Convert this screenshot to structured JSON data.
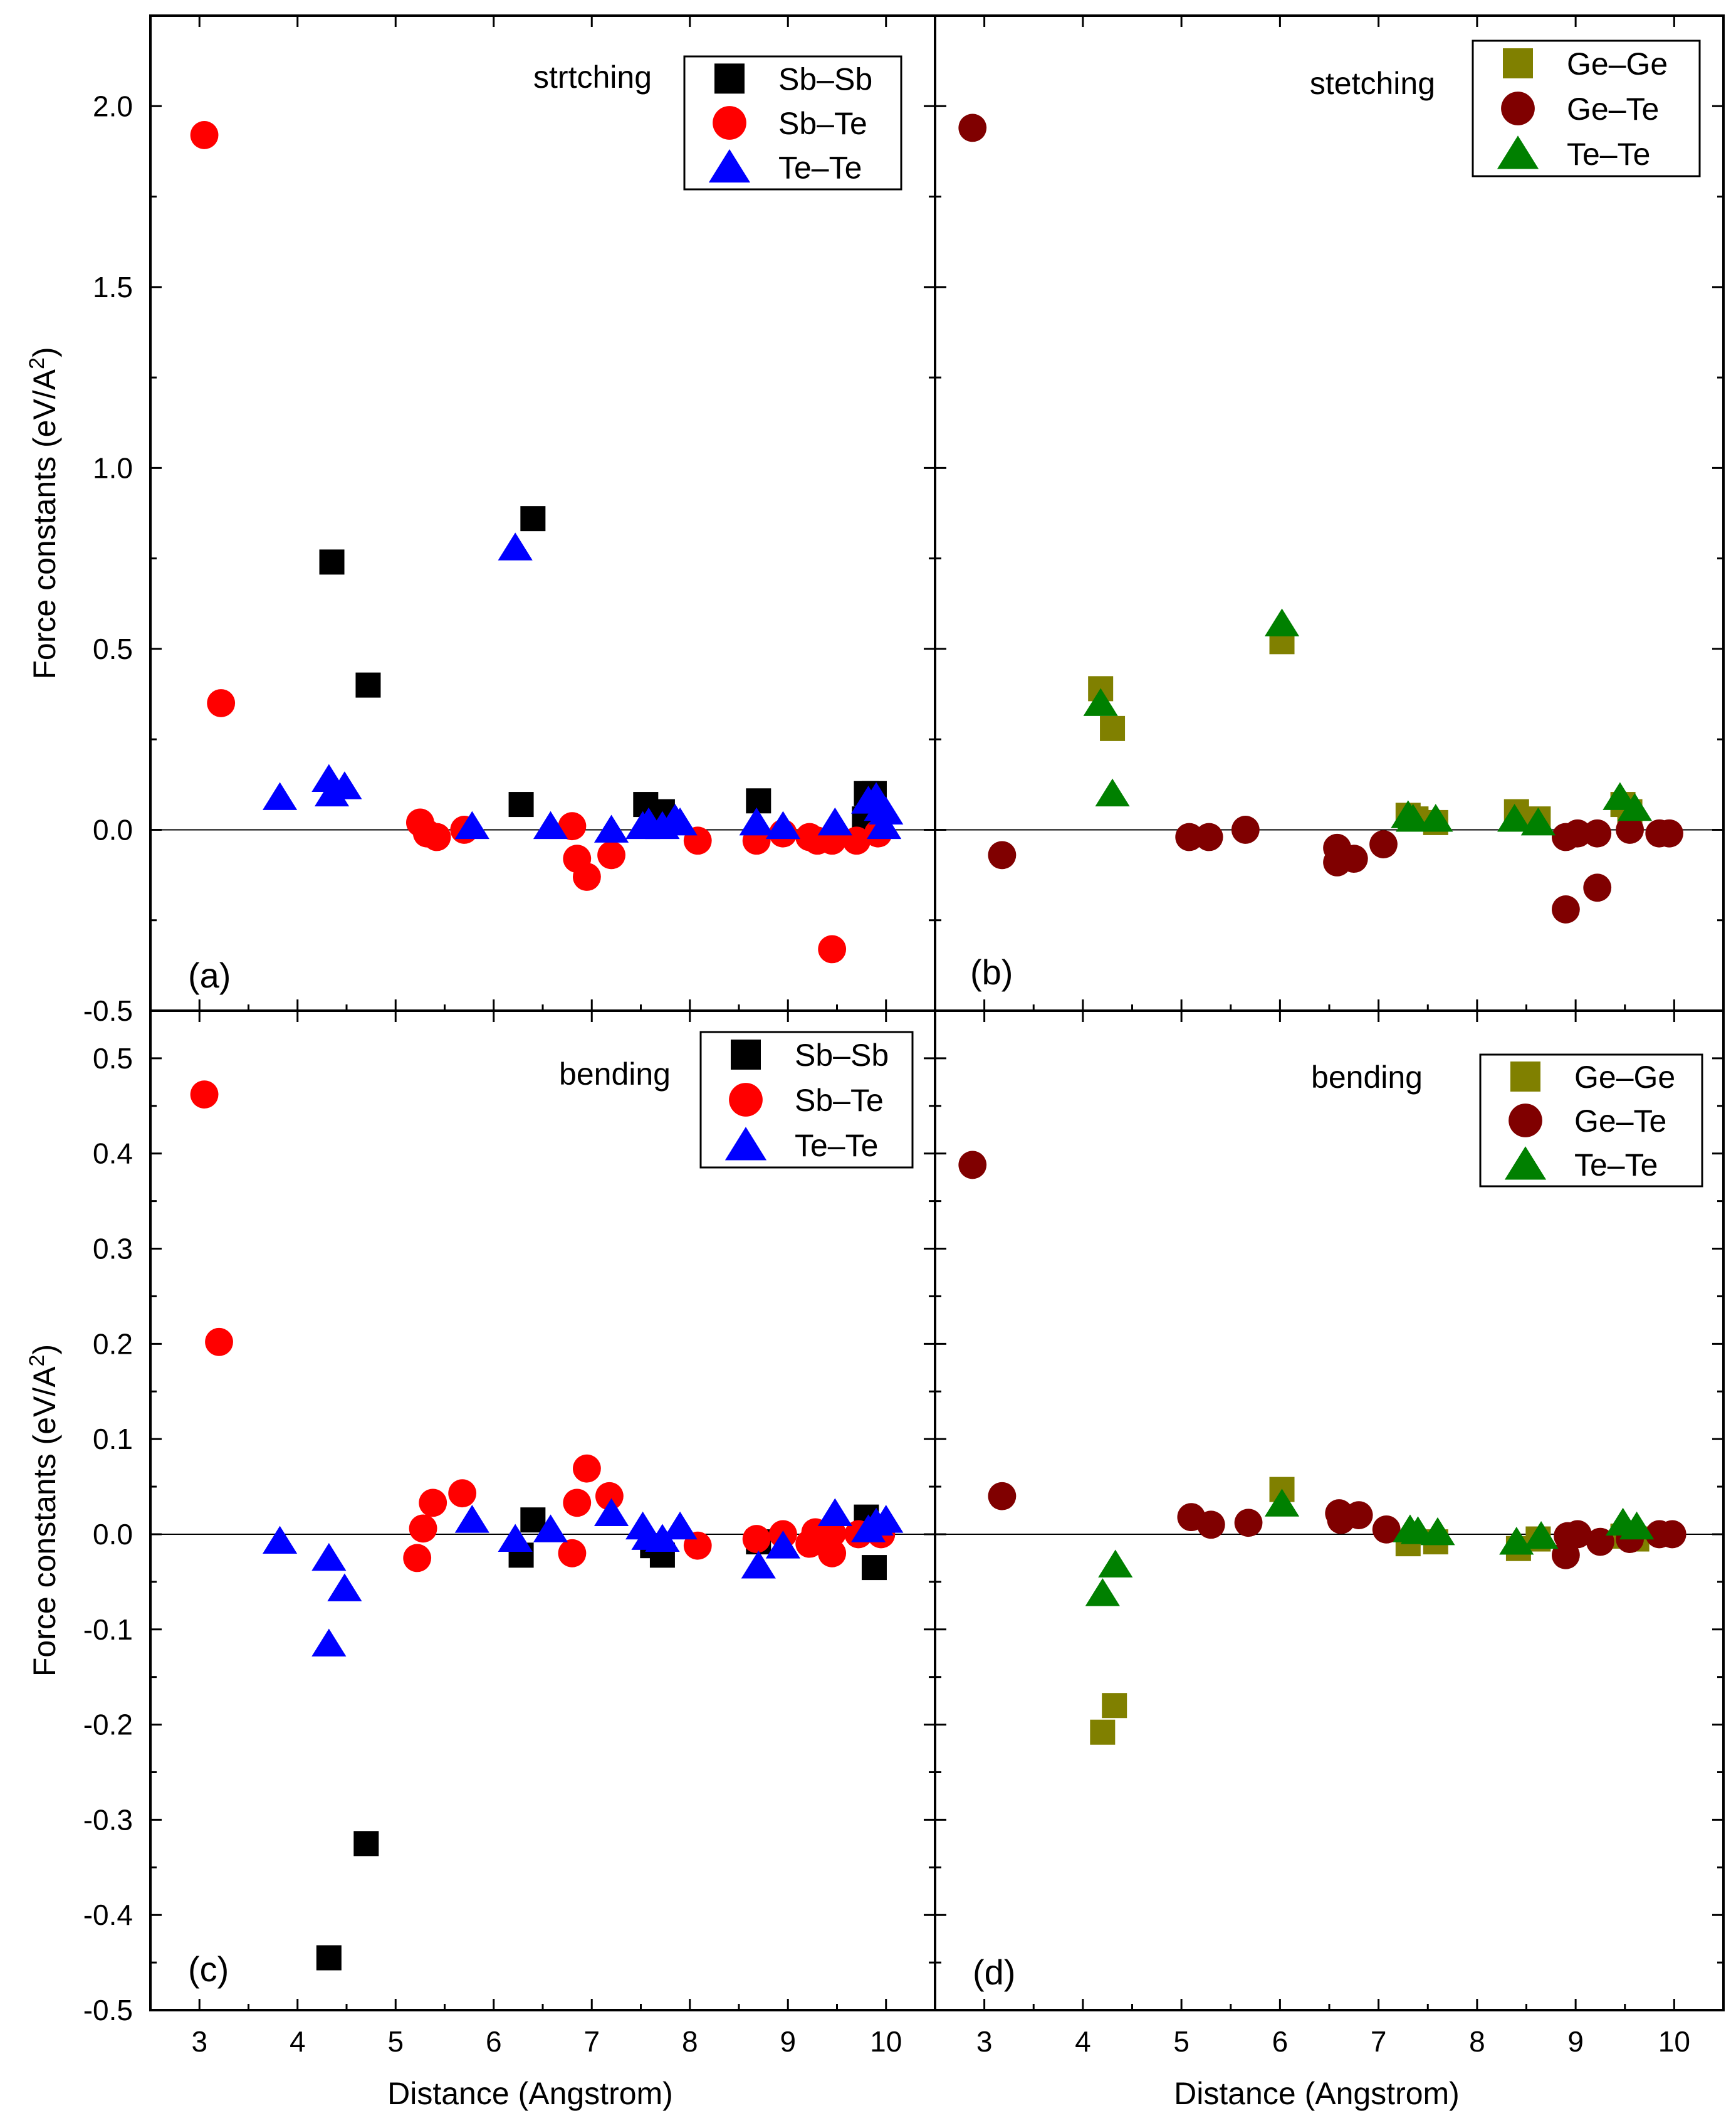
{
  "chart_data": [
    {
      "id": "a",
      "type": "scatter",
      "panel_label": "(a)",
      "annotation": "strtching",
      "ylabel": "Force constants (eV/A",
      "ylabel_sup": "2",
      "ylabel_tail": ")",
      "xlabel": "",
      "xlim": [
        2.5,
        10.5
      ],
      "ylim": [
        -0.5,
        2.25
      ],
      "xticks": [
        3,
        4,
        5,
        6,
        7,
        8,
        9,
        10
      ],
      "show_xtick_labels": false,
      "yticks": [
        -0.5,
        0.0,
        0.5,
        1.0,
        1.5,
        2.0
      ],
      "ytick_labels": [
        "-0.5",
        "0.0",
        "0.5",
        "1.0",
        "1.5",
        "2.0"
      ],
      "show_ytick_labels": true,
      "legend_position": "top-right",
      "series": [
        {
          "name": "Sb–Sb",
          "marker": "square",
          "color": "#000000",
          "points": [
            [
              4.35,
              0.74
            ],
            [
              4.72,
              0.4
            ],
            [
              6.4,
              0.86
            ],
            [
              6.28,
              0.07
            ],
            [
              7.55,
              0.07
            ],
            [
              7.72,
              0.05
            ],
            [
              8.7,
              0.08
            ],
            [
              9.8,
              0.1
            ],
            [
              9.88,
              0.1
            ],
            [
              9.78,
              0.03
            ]
          ]
        },
        {
          "name": "Sb–Te",
          "marker": "circle",
          "color": "#ff0000",
          "points": [
            [
              3.05,
              1.92
            ],
            [
              3.22,
              0.35
            ],
            [
              5.25,
              0.02
            ],
            [
              5.32,
              -0.01
            ],
            [
              5.42,
              -0.02
            ],
            [
              5.7,
              0.0
            ],
            [
              6.8,
              0.01
            ],
            [
              6.85,
              -0.08
            ],
            [
              6.95,
              -0.13
            ],
            [
              7.2,
              -0.07
            ],
            [
              8.08,
              -0.03
            ],
            [
              8.68,
              -0.03
            ],
            [
              8.95,
              -0.01
            ],
            [
              9.22,
              -0.02
            ],
            [
              9.3,
              -0.03
            ],
            [
              9.45,
              -0.03
            ],
            [
              9.45,
              -0.33
            ],
            [
              9.7,
              -0.03
            ],
            [
              9.92,
              -0.01
            ]
          ]
        },
        {
          "name": "Te–Te",
          "marker": "triangle",
          "color": "#0000ff",
          "points": [
            [
              3.82,
              0.09
            ],
            [
              4.32,
              0.14
            ],
            [
              4.35,
              0.1
            ],
            [
              4.48,
              0.12
            ],
            [
              5.78,
              0.01
            ],
            [
              6.22,
              0.78
            ],
            [
              6.58,
              0.01
            ],
            [
              7.2,
              0.0
            ],
            [
              7.52,
              0.01
            ],
            [
              7.58,
              0.02
            ],
            [
              7.72,
              0.01
            ],
            [
              7.85,
              0.03
            ],
            [
              7.9,
              0.02
            ],
            [
              8.68,
              0.02
            ],
            [
              8.95,
              0.01
            ],
            [
              9.48,
              0.02
            ],
            [
              9.82,
              0.08
            ],
            [
              9.9,
              0.09
            ],
            [
              9.95,
              0.06
            ],
            [
              10.0,
              0.05
            ],
            [
              9.98,
              0.01
            ]
          ]
        }
      ]
    },
    {
      "id": "b",
      "type": "scatter",
      "panel_label": "(b)",
      "annotation": "stetching",
      "xlabel": "",
      "xlim": [
        2.5,
        10.5
      ],
      "ylim": [
        -0.5,
        2.25
      ],
      "xticks": [
        3,
        4,
        5,
        6,
        7,
        8,
        9,
        10
      ],
      "show_xtick_labels": false,
      "yticks": [
        -0.5,
        0.0,
        0.5,
        1.0,
        1.5,
        2.0
      ],
      "show_ytick_labels": false,
      "legend_position": "top-right",
      "series": [
        {
          "name": "Ge–Ge",
          "marker": "square",
          "color": "#808000",
          "points": [
            [
              4.18,
              0.39
            ],
            [
              4.3,
              0.28
            ],
            [
              6.02,
              0.52
            ],
            [
              7.3,
              0.04
            ],
            [
              7.38,
              0.03
            ],
            [
              7.58,
              0.02
            ],
            [
              8.4,
              0.05
            ],
            [
              8.62,
              0.03
            ],
            [
              9.48,
              0.07
            ],
            [
              9.55,
              0.05
            ]
          ]
        },
        {
          "name": "Ge–Te",
          "marker": "circle",
          "color": "#800000",
          "points": [
            [
              2.88,
              1.94
            ],
            [
              3.18,
              -0.07
            ],
            [
              5.08,
              -0.02
            ],
            [
              5.28,
              -0.02
            ],
            [
              5.65,
              0.0
            ],
            [
              6.58,
              -0.05
            ],
            [
              6.58,
              -0.09
            ],
            [
              6.75,
              -0.08
            ],
            [
              7.05,
              -0.04
            ],
            [
              8.9,
              -0.02
            ],
            [
              9.02,
              -0.01
            ],
            [
              9.22,
              -0.01
            ],
            [
              8.9,
              -0.22
            ],
            [
              9.22,
              -0.16
            ],
            [
              9.55,
              0.0
            ],
            [
              9.85,
              -0.01
            ],
            [
              9.95,
              -0.01
            ]
          ]
        },
        {
          "name": "Te–Te",
          "marker": "triangle",
          "color": "#008000",
          "points": [
            [
              4.18,
              0.35
            ],
            [
              4.3,
              0.1
            ],
            [
              6.02,
              0.57
            ],
            [
              7.3,
              0.04
            ],
            [
              7.35,
              0.03
            ],
            [
              7.58,
              0.03
            ],
            [
              8.38,
              0.03
            ],
            [
              8.62,
              0.02
            ],
            [
              9.45,
              0.09
            ],
            [
              9.6,
              0.06
            ]
          ]
        }
      ]
    },
    {
      "id": "c",
      "type": "scatter",
      "panel_label": "(c)",
      "annotation": "bending",
      "ylabel": "Force constants (eV/A",
      "ylabel_sup": "2",
      "ylabel_tail": ")",
      "xlabel": "Distance (Angstrom)",
      "xlim": [
        2.5,
        10.5
      ],
      "ylim": [
        -0.5,
        0.55
      ],
      "xticks": [
        3,
        4,
        5,
        6,
        7,
        8,
        9,
        10
      ],
      "xtick_labels": [
        "3",
        "4",
        "5",
        "6",
        "7",
        "8",
        "9",
        "10"
      ],
      "show_xtick_labels": true,
      "yticks": [
        -0.5,
        -0.4,
        -0.3,
        -0.2,
        -0.1,
        0.0,
        0.1,
        0.2,
        0.3,
        0.4,
        0.5
      ],
      "ytick_labels": [
        "-0.5",
        "-0.4",
        "-0.3",
        "-0.2",
        "-0.1",
        "0.0",
        "0.1",
        "0.2",
        "0.3",
        "0.4",
        "0.5"
      ],
      "show_ytick_labels": true,
      "legend_position": "top-right",
      "series": [
        {
          "name": "Sb–Sb",
          "marker": "square",
          "color": "#000000",
          "points": [
            [
              4.32,
              -0.445
            ],
            [
              4.7,
              -0.325
            ],
            [
              6.28,
              -0.022
            ],
            [
              6.4,
              0.015
            ],
            [
              7.62,
              -0.012
            ],
            [
              7.72,
              -0.022
            ],
            [
              8.7,
              -0.008
            ],
            [
              9.8,
              0.018
            ],
            [
              9.88,
              -0.035
            ]
          ]
        },
        {
          "name": "Sb–Te",
          "marker": "circle",
          "color": "#ff0000",
          "points": [
            [
              3.05,
              0.462
            ],
            [
              3.2,
              0.202
            ],
            [
              5.22,
              -0.025
            ],
            [
              5.28,
              0.006
            ],
            [
              5.38,
              0.033
            ],
            [
              5.68,
              0.043
            ],
            [
              6.8,
              -0.02
            ],
            [
              6.85,
              0.033
            ],
            [
              6.95,
              0.069
            ],
            [
              7.18,
              0.04
            ],
            [
              8.08,
              -0.012
            ],
            [
              8.68,
              -0.005
            ],
            [
              8.95,
              0.0
            ],
            [
              9.22,
              -0.01
            ],
            [
              9.28,
              0.002
            ],
            [
              9.45,
              -0.02
            ],
            [
              9.45,
              0.001
            ],
            [
              9.72,
              0.0
            ],
            [
              9.95,
              0.0
            ]
          ]
        },
        {
          "name": "Te–Te",
          "marker": "triangle",
          "color": "#0000ff",
          "points": [
            [
              3.82,
              -0.007
            ],
            [
              4.32,
              -0.025
            ],
            [
              4.32,
              -0.115
            ],
            [
              4.48,
              -0.057
            ],
            [
              5.78,
              0.015
            ],
            [
              6.22,
              -0.005
            ],
            [
              6.58,
              0.005
            ],
            [
              7.2,
              0.022
            ],
            [
              7.52,
              0.008
            ],
            [
              7.58,
              -0.003
            ],
            [
              7.72,
              -0.005
            ],
            [
              7.9,
              0.008
            ],
            [
              8.7,
              -0.033
            ],
            [
              8.95,
              -0.012
            ],
            [
              9.48,
              0.022
            ],
            [
              9.82,
              0.005
            ],
            [
              9.9,
              0.012
            ],
            [
              10.0,
              0.015
            ]
          ]
        }
      ]
    },
    {
      "id": "d",
      "type": "scatter",
      "panel_label": "(d)",
      "annotation": "bending",
      "xlabel": "Distance (Angstrom)",
      "xlim": [
        2.5,
        10.5
      ],
      "ylim": [
        -0.5,
        0.55
      ],
      "xticks": [
        3,
        4,
        5,
        6,
        7,
        8,
        9,
        10
      ],
      "xtick_labels": [
        "3",
        "4",
        "5",
        "6",
        "7",
        "8",
        "9",
        "10"
      ],
      "show_xtick_labels": true,
      "yticks": [
        -0.5,
        -0.4,
        -0.3,
        -0.2,
        -0.1,
        0.0,
        0.1,
        0.2,
        0.3,
        0.4,
        0.5
      ],
      "show_ytick_labels": false,
      "legend_position": "top-right",
      "series": [
        {
          "name": "Ge–Ge",
          "marker": "square",
          "color": "#808000",
          "points": [
            [
              4.2,
              -0.208
            ],
            [
              4.32,
              -0.18
            ],
            [
              6.02,
              0.047
            ],
            [
              7.3,
              -0.01
            ],
            [
              7.58,
              -0.008
            ],
            [
              8.42,
              -0.015
            ],
            [
              8.62,
              -0.005
            ],
            [
              9.48,
              -0.002
            ],
            [
              9.62,
              -0.005
            ]
          ]
        },
        {
          "name": "Ge–Te",
          "marker": "circle",
          "color": "#800000",
          "points": [
            [
              2.88,
              0.388
            ],
            [
              3.18,
              0.04
            ],
            [
              5.1,
              0.018
            ],
            [
              5.3,
              0.01
            ],
            [
              5.68,
              0.012
            ],
            [
              6.6,
              0.022
            ],
            [
              6.62,
              0.015
            ],
            [
              6.8,
              0.02
            ],
            [
              7.08,
              0.005
            ],
            [
              8.9,
              -0.022
            ],
            [
              8.92,
              -0.002
            ],
            [
              9.02,
              0.0
            ],
            [
              9.25,
              -0.008
            ],
            [
              9.55,
              -0.005
            ],
            [
              9.85,
              0.0
            ],
            [
              9.98,
              0.0
            ]
          ]
        },
        {
          "name": "Te–Te",
          "marker": "triangle",
          "color": "#008000",
          "points": [
            [
              4.2,
              -0.062
            ],
            [
              4.33,
              -0.032
            ],
            [
              6.02,
              0.032
            ],
            [
              7.32,
              0.005
            ],
            [
              7.4,
              0.003
            ],
            [
              7.6,
              0.002
            ],
            [
              8.4,
              -0.008
            ],
            [
              8.65,
              -0.002
            ],
            [
              9.48,
              0.012
            ],
            [
              9.62,
              0.008
            ]
          ]
        }
      ]
    }
  ]
}
